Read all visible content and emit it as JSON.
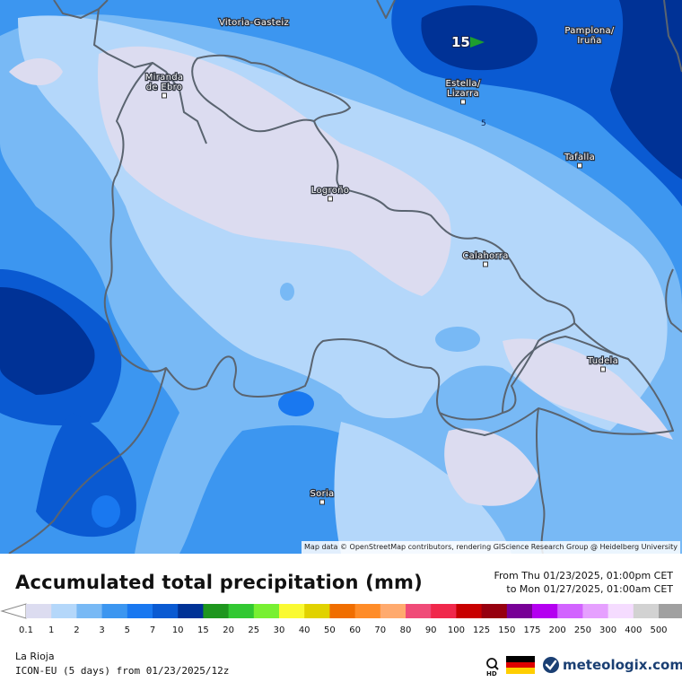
{
  "map": {
    "cities": [
      {
        "name": "Vitoria-Gasteiz",
        "lines": [
          "Vitoria-Gasteiz"
        ]
      },
      {
        "name": "Pamplona/Iruña",
        "lines": [
          "Pamplona/",
          "Iruña"
        ]
      },
      {
        "name": "Miranda de Ebro",
        "lines": [
          "Miranda",
          "de Ebro"
        ]
      },
      {
        "name": "Estella/Lizarra",
        "lines": [
          "Estella/",
          "Lizarra"
        ]
      },
      {
        "name": "Tafalla",
        "lines": [
          "Tafalla"
        ]
      },
      {
        "name": "Logroño",
        "lines": [
          "Logroño"
        ]
      },
      {
        "name": "Calahorra",
        "lines": [
          "Calahorra"
        ]
      },
      {
        "name": "Tudela",
        "lines": [
          "Tudela"
        ]
      },
      {
        "name": "Soria",
        "lines": [
          "Soria"
        ]
      }
    ],
    "max_marker_value": "15",
    "contour_label": "5",
    "attribution": "Map data © OpenStreetMap contributors, rendering GIScience Research Group @ Heidelberg University"
  },
  "legend": {
    "title": "Accumulated total precipitation (mm)",
    "period_line1": "From Thu 01/23/2025, 01:00pm CET",
    "period_line2": "to Mon 01/27/2025, 01:00am CET",
    "tick_labels": [
      "0.1",
      "1",
      "2",
      "3",
      "5",
      "7",
      "10",
      "15",
      "20",
      "25",
      "30",
      "40",
      "50",
      "60",
      "70",
      "80",
      "90",
      "100",
      "125",
      "150",
      "175",
      "200",
      "250",
      "300",
      "400",
      "500"
    ],
    "colors": [
      "#dcdcf0",
      "#b4d7fa",
      "#78b9f5",
      "#3c96f0",
      "#1978f0",
      "#0a5ad2",
      "#003296",
      "#1e961e",
      "#32c832",
      "#78f032",
      "#fafa32",
      "#e1d200",
      "#f06e00",
      "#ff8c28",
      "#ffaa6e",
      "#f04b78",
      "#f0284b",
      "#c80000",
      "#96000f",
      "#780096",
      "#b400f0",
      "#d264ff",
      "#e6a0ff",
      "#f5dcff",
      "#d2d2d2",
      "#a0a0a0"
    ],
    "location": "La Rioja",
    "model_run": "ICON-EU (5 days) from 01/23/2025/12z",
    "brand": "meteologix.com"
  }
}
